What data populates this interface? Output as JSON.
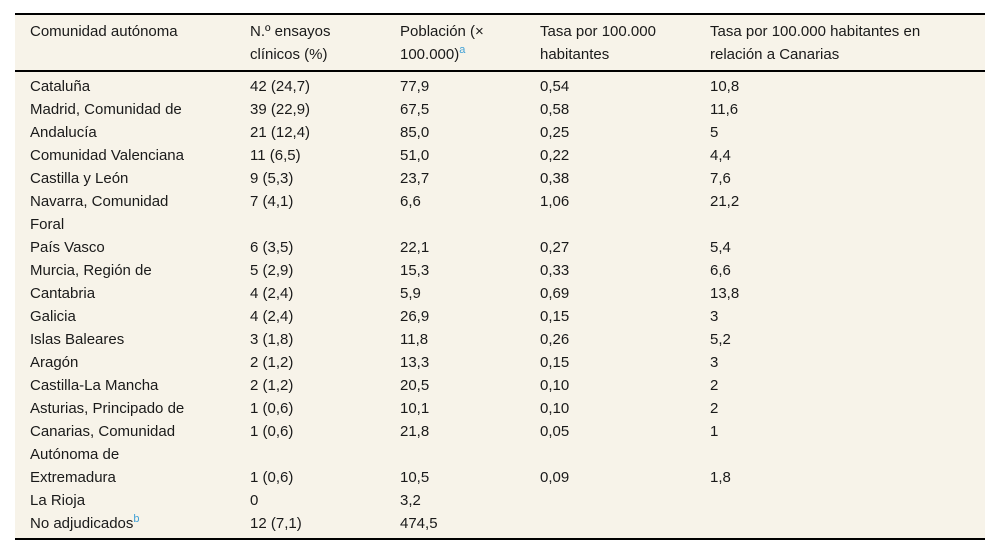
{
  "page": {
    "background_color": "#ffffff"
  },
  "table": {
    "background_color": "#f7f3e9",
    "rule_color": "#000000",
    "text_color": "#1a1a1a",
    "superscript_color": "#42a1d6",
    "columns": [
      {
        "label": "Comunidad autónoma",
        "sup": ""
      },
      {
        "label": "N.º ensayos\nclínicos (%)",
        "sup": ""
      },
      {
        "label": "Población (×\n100.000)",
        "sup": "a"
      },
      {
        "label": "Tasa por 100.000\nhabitantes",
        "sup": ""
      },
      {
        "label": "Tasa por 100.000 habitantes en\nrelación a Canarias",
        "sup": ""
      }
    ],
    "rows": [
      {
        "name": "Cataluña",
        "name_sup": "",
        "trials": "42 (24,7)",
        "population": "77,9",
        "rate": "0,54",
        "rate_vs_canarias": "10,8"
      },
      {
        "name": "Madrid, Comunidad de",
        "name_sup": "",
        "trials": "39 (22,9)",
        "population": "67,5",
        "rate": "0,58",
        "rate_vs_canarias": "11,6"
      },
      {
        "name": "Andalucía",
        "name_sup": "",
        "trials": "21 (12,4)",
        "population": "85,0",
        "rate": "0,25",
        "rate_vs_canarias": "5"
      },
      {
        "name": "Comunidad Valenciana",
        "name_sup": "",
        "trials": "11 (6,5)",
        "population": "51,0",
        "rate": "0,22",
        "rate_vs_canarias": "4,4"
      },
      {
        "name": "Castilla y León",
        "name_sup": "",
        "trials": "9 (5,3)",
        "population": "23,7",
        "rate": "0,38",
        "rate_vs_canarias": "7,6"
      },
      {
        "name": "Navarra, Comunidad\nForal",
        "name_sup": "",
        "trials": "7 (4,1)",
        "population": "6,6",
        "rate": "1,06",
        "rate_vs_canarias": "21,2"
      },
      {
        "name": "País Vasco",
        "name_sup": "",
        "trials": "6 (3,5)",
        "population": "22,1",
        "rate": "0,27",
        "rate_vs_canarias": "5,4"
      },
      {
        "name": "Murcia, Región de",
        "name_sup": "",
        "trials": "5 (2,9)",
        "population": "15,3",
        "rate": "0,33",
        "rate_vs_canarias": "6,6"
      },
      {
        "name": "Cantabria",
        "name_sup": "",
        "trials": "4 (2,4)",
        "population": "5,9",
        "rate": "0,69",
        "rate_vs_canarias": "13,8"
      },
      {
        "name": "Galicia",
        "name_sup": "",
        "trials": "4 (2,4)",
        "population": "26,9",
        "rate": "0,15",
        "rate_vs_canarias": "3"
      },
      {
        "name": "Islas Baleares",
        "name_sup": "",
        "trials": "3 (1,8)",
        "population": "11,8",
        "rate": "0,26",
        "rate_vs_canarias": "5,2"
      },
      {
        "name": "Aragón",
        "name_sup": "",
        "trials": "2 (1,2)",
        "population": "13,3",
        "rate": "0,15",
        "rate_vs_canarias": "3"
      },
      {
        "name": "Castilla-La Mancha",
        "name_sup": "",
        "trials": "2 (1,2)",
        "population": "20,5",
        "rate": "0,10",
        "rate_vs_canarias": "2"
      },
      {
        "name": "Asturias, Principado de",
        "name_sup": "",
        "trials": "1 (0,6)",
        "population": "10,1",
        "rate": "0,10",
        "rate_vs_canarias": "2"
      },
      {
        "name": "Canarias, Comunidad\nAutónoma de",
        "name_sup": "",
        "trials": "1 (0,6)",
        "population": "21,8",
        "rate": "0,05",
        "rate_vs_canarias": "1"
      },
      {
        "name": "Extremadura",
        "name_sup": "",
        "trials": "1 (0,6)",
        "population": "10,5",
        "rate": "0,09",
        "rate_vs_canarias": "1,8"
      },
      {
        "name": "La Rioja",
        "name_sup": "",
        "trials": "0",
        "population": "3,2",
        "rate": "",
        "rate_vs_canarias": ""
      },
      {
        "name": "No adjudicados",
        "name_sup": "b",
        "trials": "12 (7,1)",
        "population": "474,5",
        "rate": "",
        "rate_vs_canarias": ""
      }
    ]
  }
}
